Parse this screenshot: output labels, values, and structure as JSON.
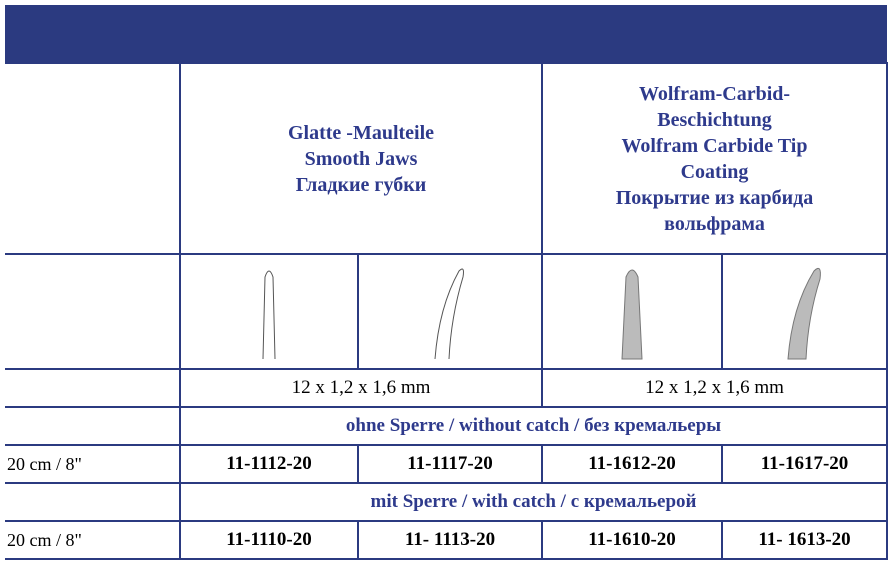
{
  "table": {
    "header_groups": [
      {
        "lines": [
          "Glatte -Maulteile",
          "Smooth Jaws",
          "Гладкие губки"
        ]
      },
      {
        "lines": [
          "Wolfram-Carbid-",
          "Beschichtung",
          "Wolfram Carbide Tip",
          "Coating",
          "Покрытие из карбида",
          "вольфрама"
        ]
      }
    ],
    "sizes": [
      "12 x 1,2 x 1,6 mm",
      "12 x 1,2 x 1,6 mm"
    ],
    "sections": [
      {
        "label": "ohne Sperre / without catch / без кремальеры",
        "rows": [
          {
            "length": "20 cm / 8\"",
            "codes": [
              "11-1112-20",
              "11-1117-20",
              "11-1612-20",
              "11-1617-20"
            ]
          }
        ]
      },
      {
        "label": "mit Sperre / with catch / с кремальерой",
        "rows": [
          {
            "length": "20 cm / 8\"",
            "codes": [
              "11-1110-20",
              "11- 1113-20",
              "11-1610-20",
              "11- 1613-20"
            ]
          }
        ]
      }
    ]
  }
}
